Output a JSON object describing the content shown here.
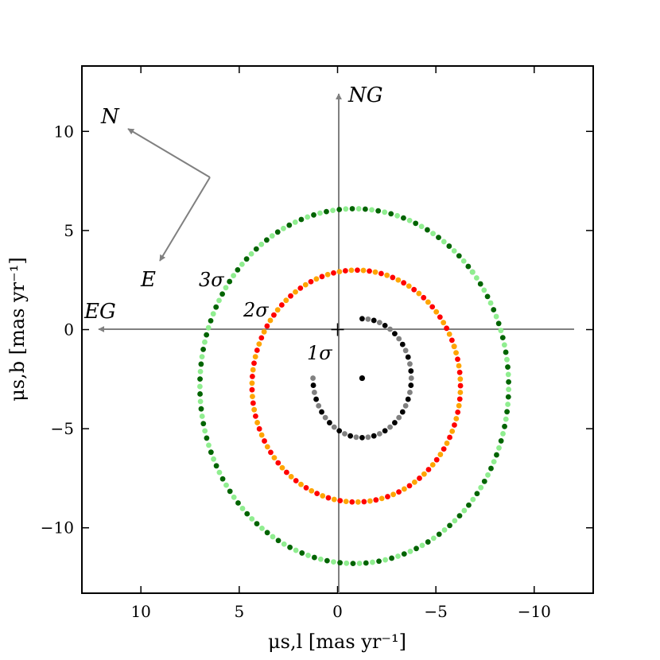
{
  "chart_data": {
    "type": "scatter",
    "title": "",
    "xlabel": "μs,l [mas yr⁻¹]",
    "ylabel": "μs,b [mas yr⁻¹]",
    "xlim": [
      13,
      -13
    ],
    "ylim": [
      -13.3,
      13.3
    ],
    "x_inverted": true,
    "xticks": [
      10,
      5,
      0,
      -5,
      -10
    ],
    "xtick_labels": [
      "10",
      "5",
      "0",
      "−5",
      "−10"
    ],
    "yticks": [
      10,
      5,
      0,
      -5,
      -10
    ],
    "ytick_labels": [
      "10",
      "5",
      "0",
      "−5",
      "−10"
    ],
    "grid": false,
    "center_point": {
      "x": -1.25,
      "y": -2.45,
      "color": "#000000"
    },
    "series": [
      {
        "label": "1σ",
        "colors": [
          "#000000",
          "#808080"
        ],
        "semi_axis_x": 2.5,
        "semi_axis_y": 3.0,
        "center": [
          -1.25,
          -2.45
        ],
        "start_angle_deg": 90,
        "sweep_deg": 270,
        "n_points": 40
      },
      {
        "label": "2σ",
        "colors": [
          "#ff0000",
          "#ffa500"
        ],
        "semi_axis_x": 5.3,
        "semi_axis_y": 5.85,
        "center": [
          -0.95,
          -2.85
        ],
        "start_angle_deg": 160,
        "sweep_deg": 360,
        "n_points": 110
      },
      {
        "label": "3σ",
        "colors": [
          "#006400",
          "#90ee90"
        ],
        "semi_axis_x": 7.85,
        "semi_axis_y": 8.95,
        "center": [
          -0.85,
          -2.85
        ],
        "start_angle_deg": 140,
        "sweep_deg": 360,
        "n_points": 150
      }
    ],
    "annotations": {
      "galactic_axes": {
        "north_label": "NG",
        "east_label": "EG",
        "color": "#808080"
      },
      "equatorial_axes": {
        "north_label": "N",
        "east_label": "E",
        "color": "#808080"
      }
    }
  }
}
